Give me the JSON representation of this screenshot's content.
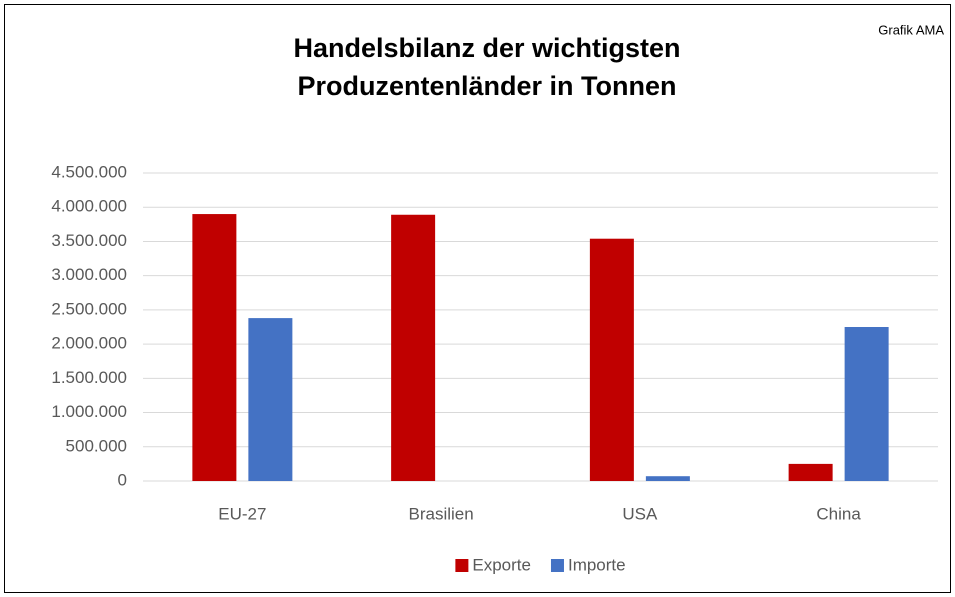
{
  "chart_data": {
    "type": "bar",
    "title": [
      "Handelsbilanz der wichtigsten",
      "Produzentenländer in Tonnen"
    ],
    "annotation": "Grafik AMA",
    "categories": [
      "EU-27",
      "Brasilien",
      "USA",
      "China"
    ],
    "series": [
      {
        "name": "Exporte",
        "color": "#c00000",
        "values": [
          3900000,
          3890000,
          3540000,
          250000
        ]
      },
      {
        "name": "Importe",
        "color": "#4472c4",
        "values": [
          2380000,
          0,
          70000,
          2250000
        ]
      }
    ],
    "ylim": [
      0,
      4500000
    ],
    "yticks": [
      0,
      {
        "value": 500000,
        "label": "500.000"
      },
      {
        "value": 1000000,
        "label": "1.000.000"
      },
      {
        "value": 1500000,
        "label": "1.500.000"
      },
      {
        "value": 2000000,
        "label": "2.000.000"
      },
      {
        "value": 2500000,
        "label": "2.500.000"
      },
      {
        "value": 3000000,
        "label": "3.000.000"
      },
      {
        "value": 3500000,
        "label": "3.500.000"
      },
      {
        "value": 4000000,
        "label": "4.000.000"
      },
      {
        "value": 4500000,
        "label": "4.500.000"
      }
    ],
    "grid": true,
    "legend": "bottom"
  }
}
